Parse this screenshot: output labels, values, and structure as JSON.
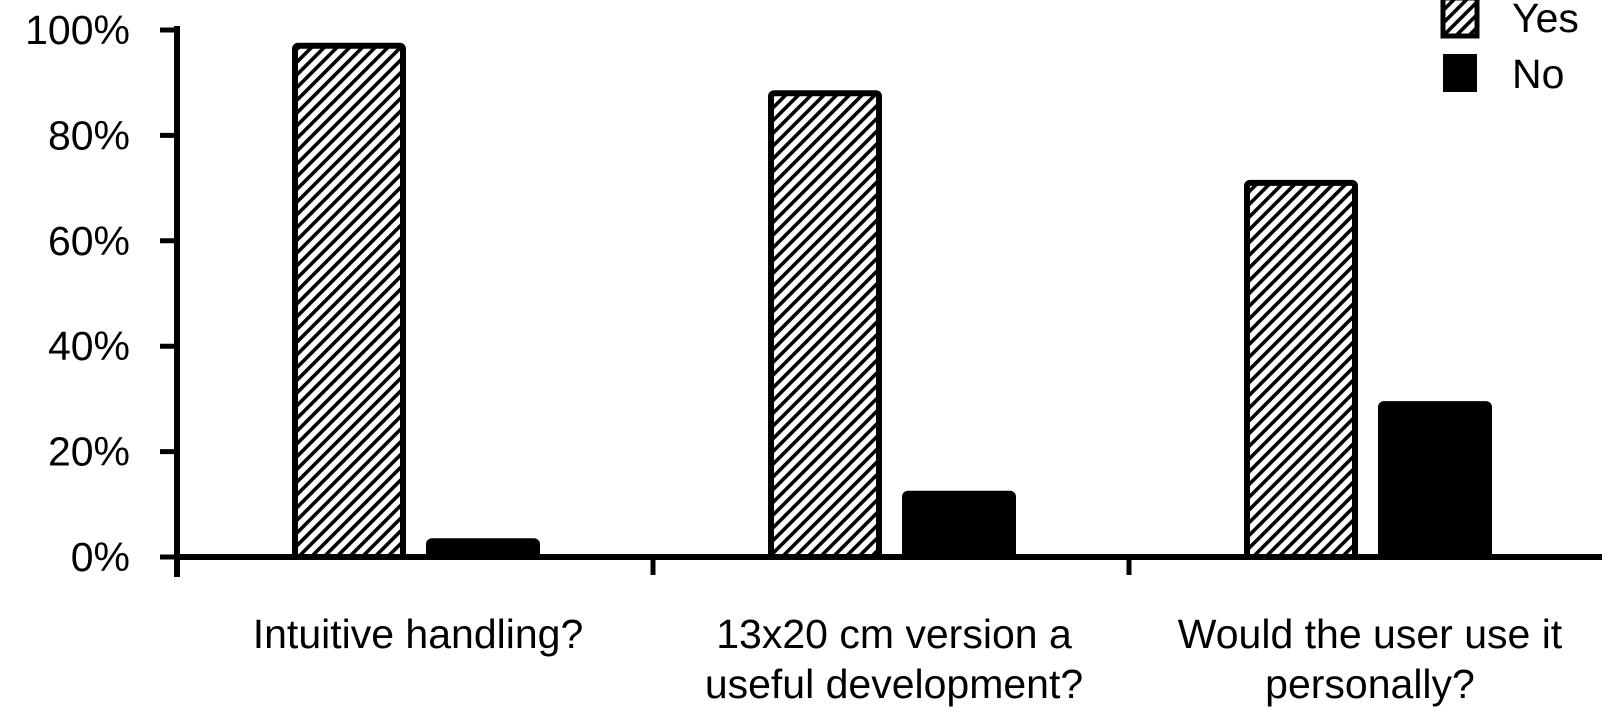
{
  "chart_data": {
    "type": "bar",
    "categories": [
      [
        "Intuitive handling?"
      ],
      [
        "13x20 cm version a",
        "useful development?"
      ],
      [
        "Would the user use it",
        "personally?"
      ]
    ],
    "series": [
      {
        "name": "Yes",
        "values": [
          0.97,
          0.88,
          0.71
        ],
        "fill": "hatch"
      },
      {
        "name": "No",
        "values": [
          0.03,
          0.12,
          0.29
        ],
        "fill": "solid"
      }
    ],
    "y_ticks": [
      {
        "value": 0,
        "label": "0%"
      },
      {
        "value": 0.2,
        "label": "20%"
      },
      {
        "value": 0.4,
        "label": "40%"
      },
      {
        "value": 0.6,
        "label": "60%"
      },
      {
        "value": 0.8,
        "label": "80%"
      },
      {
        "value": 1.0,
        "label": "100%"
      }
    ],
    "ylim": [
      0,
      1
    ],
    "grid": false,
    "legend_position": "top-right",
    "colors": {
      "ink": "#000000",
      "background": "#ffffff"
    }
  }
}
